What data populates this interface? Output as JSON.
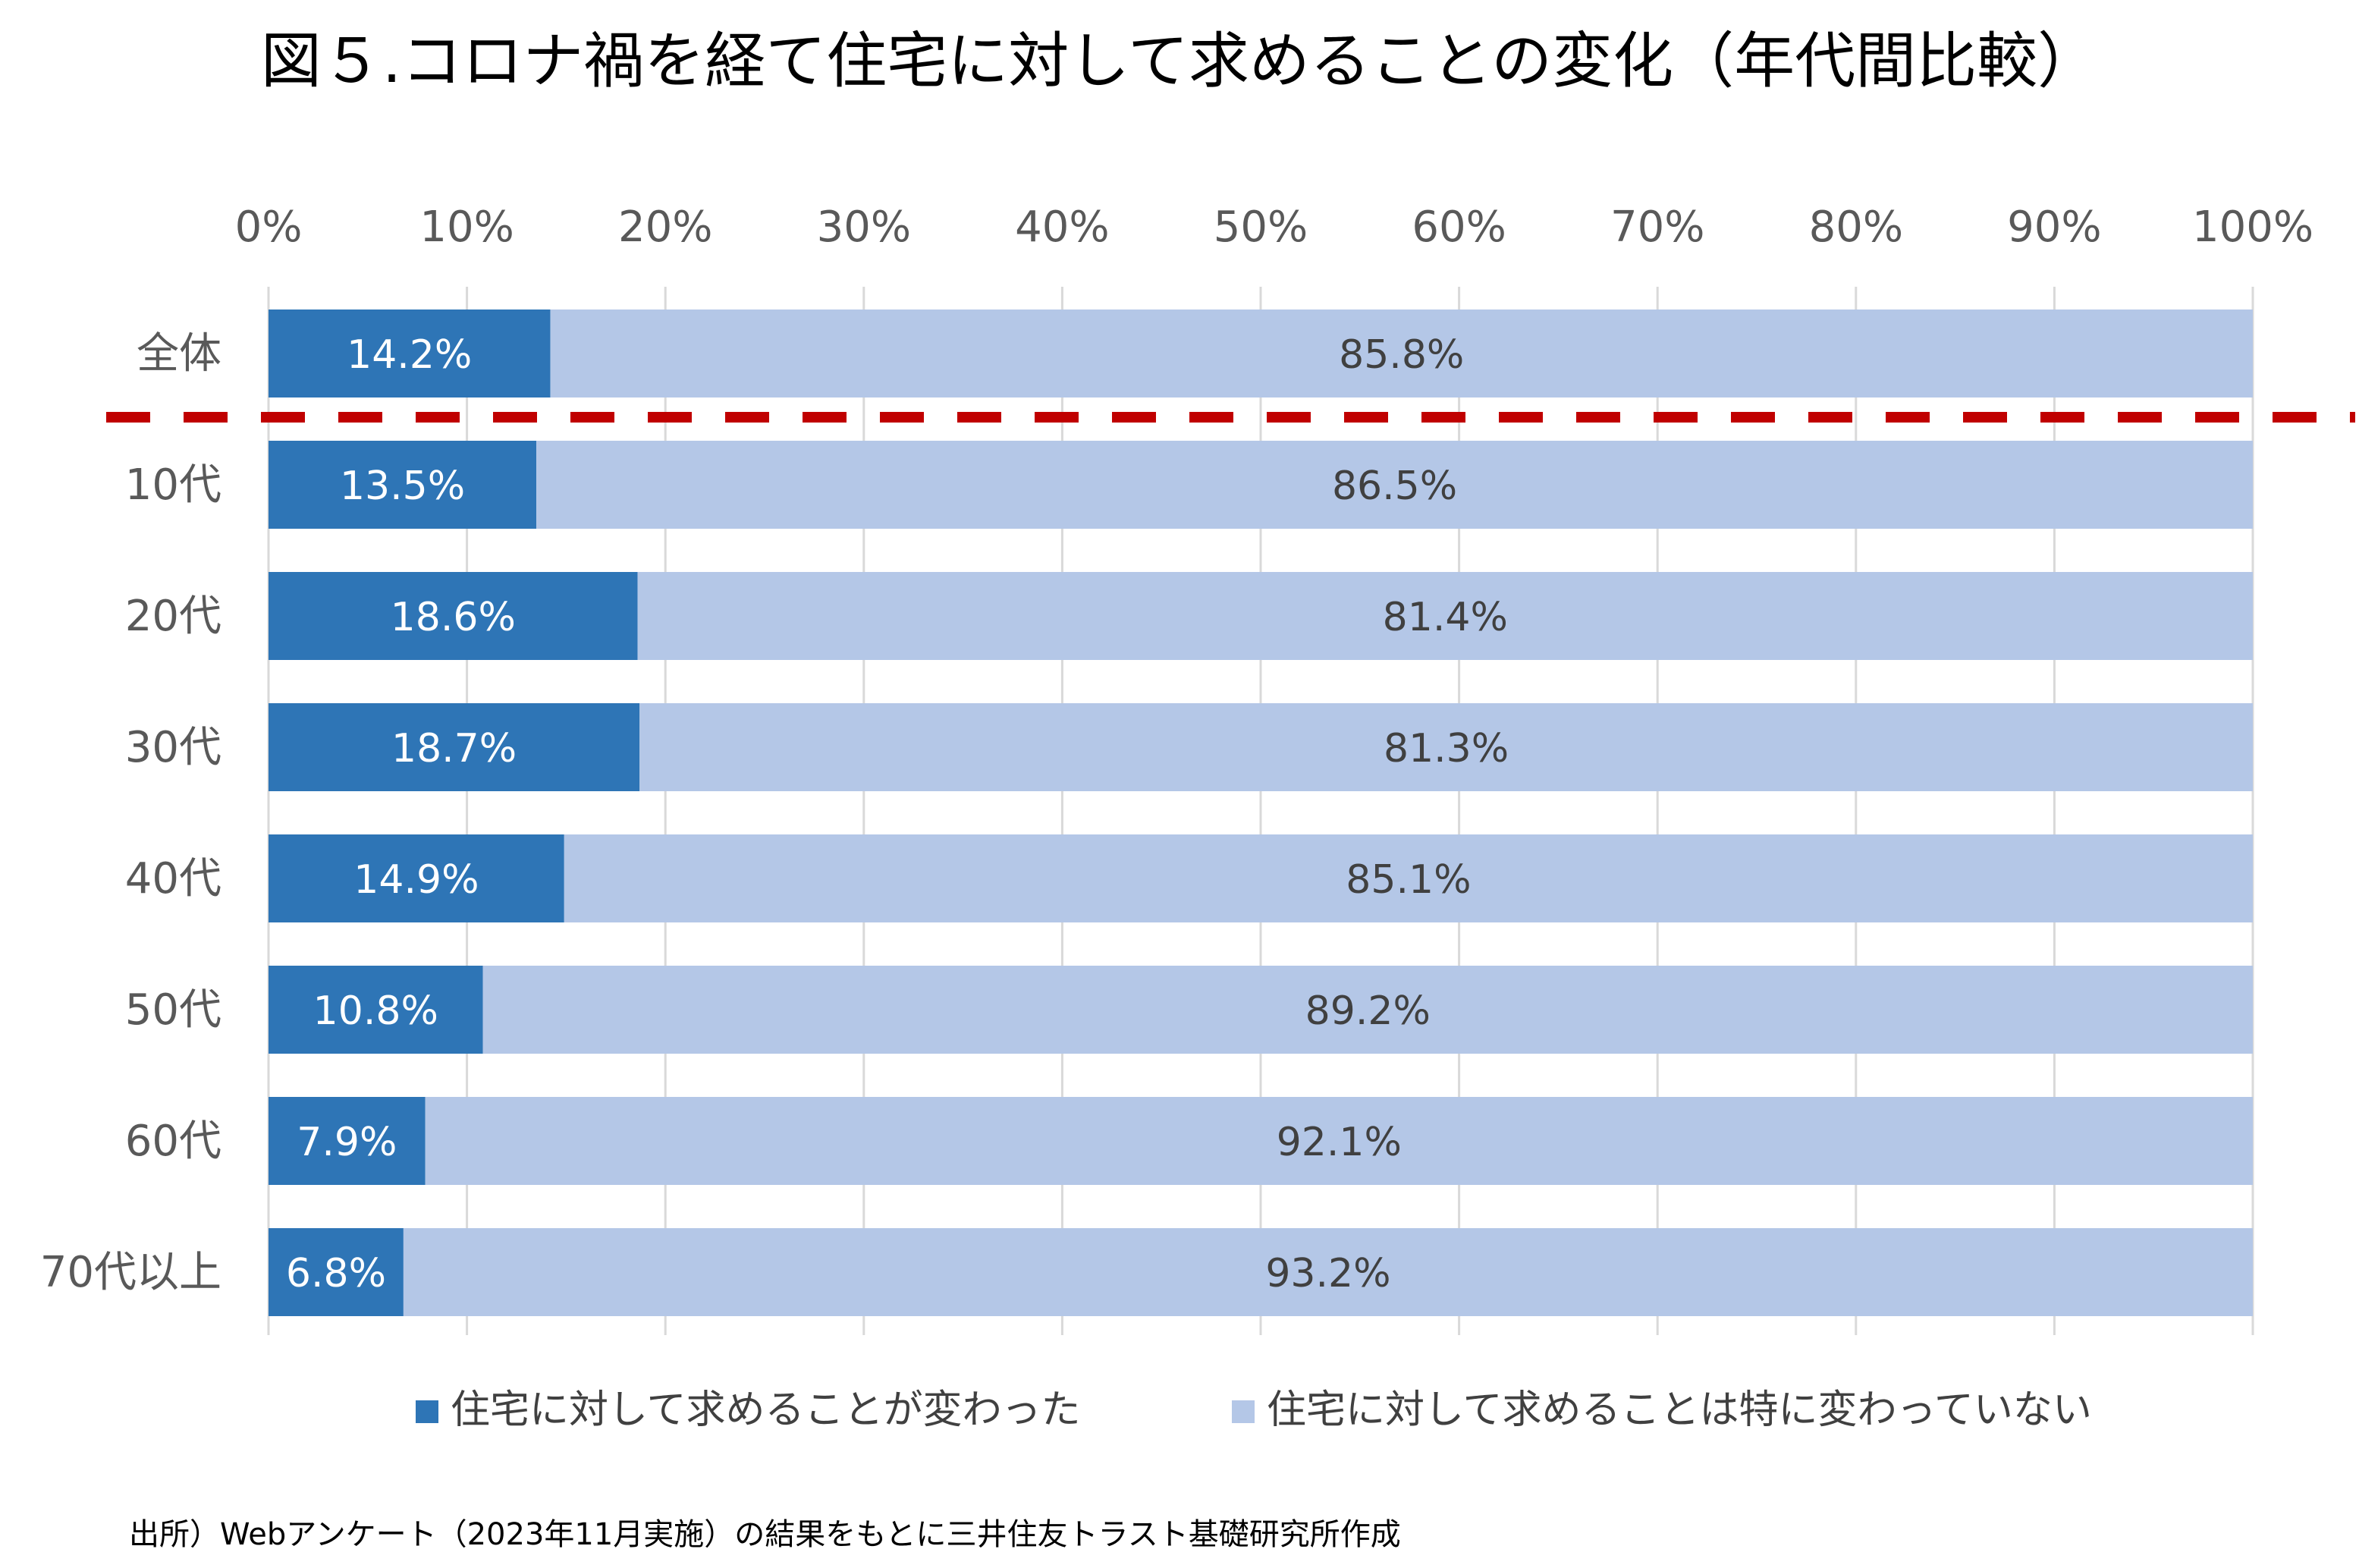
{
  "colors": {
    "changed": "#2e75b6",
    "unchanged": "#b4c7e7",
    "grid": "#d9d9d9",
    "divider": "#c00000",
    "text_dark": "#000000",
    "text_axis": "#595959",
    "label_light": "#ffffff",
    "label_dark": "#404040"
  },
  "chart_data": {
    "type": "bar",
    "orientation": "horizontal",
    "stacked": true,
    "title": "図５.コロナ禍を経て住宅に対して求めることの変化（年代間比較）",
    "xlabel": "",
    "ylabel": "",
    "xlim": [
      0,
      100
    ],
    "x_ticks": [
      "0%",
      "10%",
      "20%",
      "30%",
      "40%",
      "50%",
      "60%",
      "70%",
      "80%",
      "90%",
      "100%"
    ],
    "categories": [
      "全体",
      "10代",
      "20代",
      "30代",
      "40代",
      "50代",
      "60代",
      "70代以上"
    ],
    "series": [
      {
        "name": "住宅に対して求めることが変わった",
        "values": [
          14.2,
          13.5,
          18.6,
          18.7,
          14.9,
          10.8,
          7.9,
          6.8
        ],
        "labels": [
          "14.2%",
          "13.5%",
          "18.6%",
          "18.7%",
          "14.9%",
          "10.8%",
          "7.9%",
          "6.8%"
        ]
      },
      {
        "name": "住宅に対して求めることは特に変わっていない",
        "values": [
          85.8,
          86.5,
          81.4,
          81.3,
          85.1,
          89.2,
          92.1,
          93.2
        ],
        "labels": [
          "85.8%",
          "86.5%",
          "81.4%",
          "81.3%",
          "85.1%",
          "89.2%",
          "92.1%",
          "93.2%"
        ]
      }
    ],
    "grid": true,
    "legend_position": "bottom",
    "annotations": [
      "dashed red line separating 全体 from age groups"
    ],
    "source": "出所）Webアンケート（2023年11月実施）の結果をもとに三井住友トラスト基礎研究所作成"
  }
}
